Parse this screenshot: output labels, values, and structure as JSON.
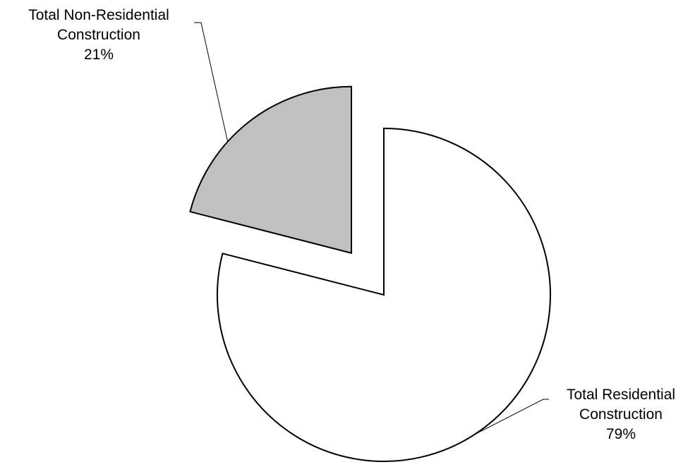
{
  "chart_data": {
    "type": "pie",
    "title": "",
    "slices": [
      {
        "label": "Total Residential Construction",
        "label_lines": [
          "Total Residential",
          "Construction"
        ],
        "percent_label": "79%",
        "value": 79,
        "color": "#ffffff",
        "exploded": false
      },
      {
        "label": "Total Non-Residential Construction",
        "label_lines": [
          "Total Non-Residential",
          "Construction"
        ],
        "percent_label": "21%",
        "value": 21,
        "color": "#c0c0c0",
        "exploded": true
      }
    ],
    "start_angle": "12 o'clock",
    "direction": "clockwise",
    "legend": "none",
    "label_position": "outside with leader lines"
  }
}
